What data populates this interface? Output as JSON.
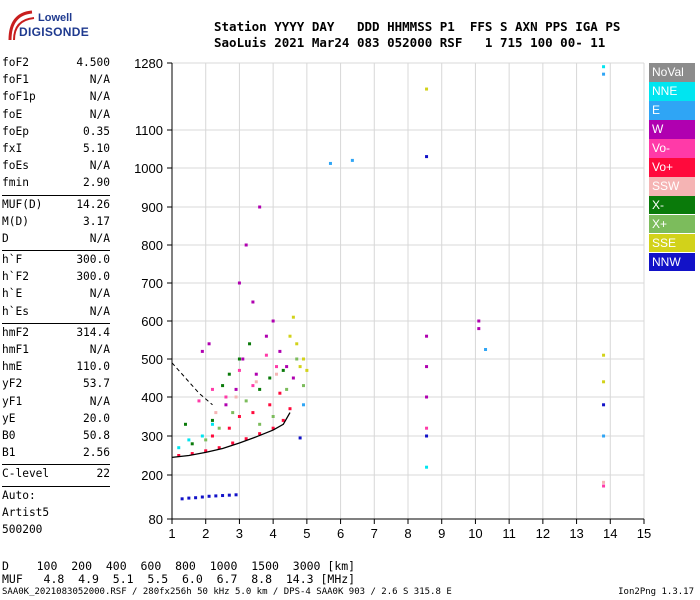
{
  "logo": {
    "line1": "Lowell",
    "line2": "DIGISONDE"
  },
  "header": {
    "row1": "Station YYYY DAY   DDD HHMMSS P1  FFS S AXN PPS IGA PS",
    "row2": "SaoLuis 2021 Mar24 083 052000 RSF   1 715 100 00- 11"
  },
  "params": [
    {
      "label": "foF2",
      "value": "4.500"
    },
    {
      "label": "foF1",
      "value": "N/A"
    },
    {
      "label": "foF1p",
      "value": "N/A"
    },
    {
      "label": "foE",
      "value": "N/A"
    },
    {
      "label": "foEp",
      "value": "0.35"
    },
    {
      "label": "fxI",
      "value": "5.10"
    },
    {
      "label": "foEs",
      "value": "N/A"
    },
    {
      "label": "fmin",
      "value": "2.90"
    },
    {
      "divider": true
    },
    {
      "label": "MUF(D)",
      "value": "14.26"
    },
    {
      "label": "M(D)",
      "value": "3.17"
    },
    {
      "label": "D",
      "value": "N/A"
    },
    {
      "divider": true
    },
    {
      "label": "h`F",
      "value": "300.0"
    },
    {
      "label": "h`F2",
      "value": "300.0"
    },
    {
      "label": "h`E",
      "value": "N/A"
    },
    {
      "label": "h`Es",
      "value": "N/A"
    },
    {
      "divider": true
    },
    {
      "label": "hmF2",
      "value": "314.4"
    },
    {
      "label": "hmF1",
      "value": "N/A"
    },
    {
      "label": "hmE",
      "value": "110.0"
    },
    {
      "label": "yF2",
      "value": "53.7"
    },
    {
      "label": "yF1",
      "value": "N/A"
    },
    {
      "label": "yE",
      "value": "20.0"
    },
    {
      "label": "B0",
      "value": "50.8"
    },
    {
      "label": "B1",
      "value": "2.56"
    },
    {
      "divider": true
    },
    {
      "label": "C-level",
      "value": "22"
    },
    {
      "divider": true
    },
    {
      "text": "Auto:"
    },
    {
      "text": "Artist5"
    },
    {
      "text": "500200"
    }
  ],
  "legend": [
    {
      "label": "NoVal",
      "color": "#8c8c8c"
    },
    {
      "label": "NNE",
      "color": "#00e5f0"
    },
    {
      "label": "E",
      "color": "#2fa5f5"
    },
    {
      "label": "W",
      "color": "#b000b0"
    },
    {
      "label": "Vo-",
      "color": "#ff3aa8"
    },
    {
      "label": "Vo+",
      "color": "#ff0a3c"
    },
    {
      "label": "SSW",
      "color": "#f5b4b4"
    },
    {
      "label": "X-",
      "color": "#0a7a0a"
    },
    {
      "label": "X+",
      "color": "#7cbc5c"
    },
    {
      "label": "SSE",
      "color": "#d2d21a"
    },
    {
      "label": "NNW",
      "color": "#1212c8"
    }
  ],
  "bottom": {
    "row1": "D    100  200  400  600  800  1000  1500  3000 [km]",
    "row2": "MUF   4.8  4.9  5.1  5.5  6.0  6.7  8.8  14.3 [MHz]"
  },
  "footer": {
    "left": "SAA0K_2021083052000.RSF / 280fx256h 50 kHz 5.0 km / DPS-4 SAA0K 903 / 2.6 S 315.8 E",
    "right": "Ion2Png 1.3.17"
  },
  "chart_data": {
    "type": "scatter",
    "title": "",
    "xlabel": "",
    "ylabel": "",
    "xlim": [
      1,
      15
    ],
    "ylim": [
      80,
      1280
    ],
    "x_ticks": [
      1,
      2,
      3,
      4,
      5,
      6,
      7,
      8,
      9,
      10,
      11,
      12,
      13,
      14,
      15
    ],
    "y_ticks": [
      80,
      200,
      300,
      400,
      500,
      600,
      700,
      800,
      900,
      1000,
      1100,
      1280
    ],
    "grid": true,
    "legend_position": "right",
    "series": [
      {
        "color": "#ff0a3c",
        "points": [
          [
            1.2,
            250
          ],
          [
            1.6,
            255
          ],
          [
            2.0,
            262
          ],
          [
            2.4,
            270
          ],
          [
            2.8,
            282
          ],
          [
            3.2,
            293
          ],
          [
            3.6,
            306
          ],
          [
            4.0,
            320
          ],
          [
            4.3,
            340
          ],
          [
            4.5,
            370
          ],
          [
            2.2,
            300
          ],
          [
            2.7,
            320
          ],
          [
            3.0,
            350
          ],
          [
            3.4,
            360
          ],
          [
            3.9,
            380
          ],
          [
            4.2,
            410
          ]
        ]
      },
      {
        "color": "#b000b0",
        "points": [
          [
            3.0,
            700
          ],
          [
            3.2,
            800
          ],
          [
            3.4,
            650
          ],
          [
            3.6,
            900
          ],
          [
            3.8,
            560
          ],
          [
            4.0,
            600
          ],
          [
            4.2,
            520
          ],
          [
            4.4,
            480
          ],
          [
            4.6,
            450
          ],
          [
            3.1,
            500
          ],
          [
            3.5,
            460
          ],
          [
            2.9,
            420
          ],
          [
            2.6,
            380
          ],
          [
            8.55,
            560
          ],
          [
            8.55,
            480
          ],
          [
            8.55,
            400
          ],
          [
            10.1,
            600
          ],
          [
            10.1,
            580
          ],
          [
            1.9,
            520
          ],
          [
            2.1,
            540
          ]
        ]
      },
      {
        "color": "#1212c8",
        "points": [
          [
            1.3,
            135
          ],
          [
            1.5,
            137
          ],
          [
            1.7,
            138
          ],
          [
            1.9,
            140
          ],
          [
            2.1,
            142
          ],
          [
            2.3,
            143
          ],
          [
            2.5,
            144
          ],
          [
            2.7,
            145
          ],
          [
            2.9,
            146
          ],
          [
            8.55,
            1030
          ],
          [
            8.55,
            300
          ],
          [
            13.8,
            380
          ],
          [
            4.8,
            295
          ]
        ]
      },
      {
        "color": "#0a7a0a",
        "points": [
          [
            2.5,
            430
          ],
          [
            2.7,
            460
          ],
          [
            3.0,
            500
          ],
          [
            3.3,
            540
          ],
          [
            3.6,
            420
          ],
          [
            3.9,
            450
          ],
          [
            4.3,
            470
          ],
          [
            2.2,
            340
          ],
          [
            1.6,
            280
          ],
          [
            1.4,
            330
          ]
        ]
      },
      {
        "color": "#7cbc5c",
        "points": [
          [
            2.0,
            290
          ],
          [
            2.4,
            320
          ],
          [
            2.8,
            360
          ],
          [
            3.2,
            390
          ],
          [
            3.6,
            330
          ],
          [
            4.0,
            350
          ],
          [
            4.4,
            420
          ],
          [
            4.7,
            500
          ],
          [
            4.9,
            430
          ]
        ]
      },
      {
        "color": "#d2d21a",
        "points": [
          [
            4.5,
            560
          ],
          [
            4.7,
            540
          ],
          [
            4.9,
            500
          ],
          [
            5.0,
            470
          ],
          [
            4.6,
            610
          ],
          [
            4.8,
            480
          ],
          [
            13.8,
            510
          ],
          [
            13.8,
            440
          ],
          [
            8.55,
            1210
          ]
        ]
      },
      {
        "color": "#2fa5f5",
        "points": [
          [
            6.35,
            1020
          ],
          [
            5.7,
            1012
          ],
          [
            13.8,
            1250
          ],
          [
            13.8,
            300
          ],
          [
            10.3,
            525
          ],
          [
            4.9,
            380
          ]
        ]
      },
      {
        "color": "#ff3aa8",
        "points": [
          [
            1.8,
            390
          ],
          [
            2.2,
            420
          ],
          [
            2.6,
            400
          ],
          [
            3.0,
            470
          ],
          [
            3.4,
            430
          ],
          [
            3.8,
            510
          ],
          [
            4.1,
            480
          ],
          [
            8.55,
            320
          ],
          [
            13.8,
            170
          ]
        ]
      },
      {
        "color": "#00e5f0",
        "points": [
          [
            1.2,
            270
          ],
          [
            1.5,
            290
          ],
          [
            1.9,
            300
          ],
          [
            2.2,
            330
          ],
          [
            13.8,
            1270
          ],
          [
            8.55,
            220
          ]
        ]
      },
      {
        "color": "#f5b4b4",
        "points": [
          [
            2.3,
            360
          ],
          [
            2.9,
            400
          ],
          [
            3.5,
            440
          ],
          [
            4.1,
            460
          ],
          [
            13.8,
            180
          ]
        ]
      }
    ]
  }
}
